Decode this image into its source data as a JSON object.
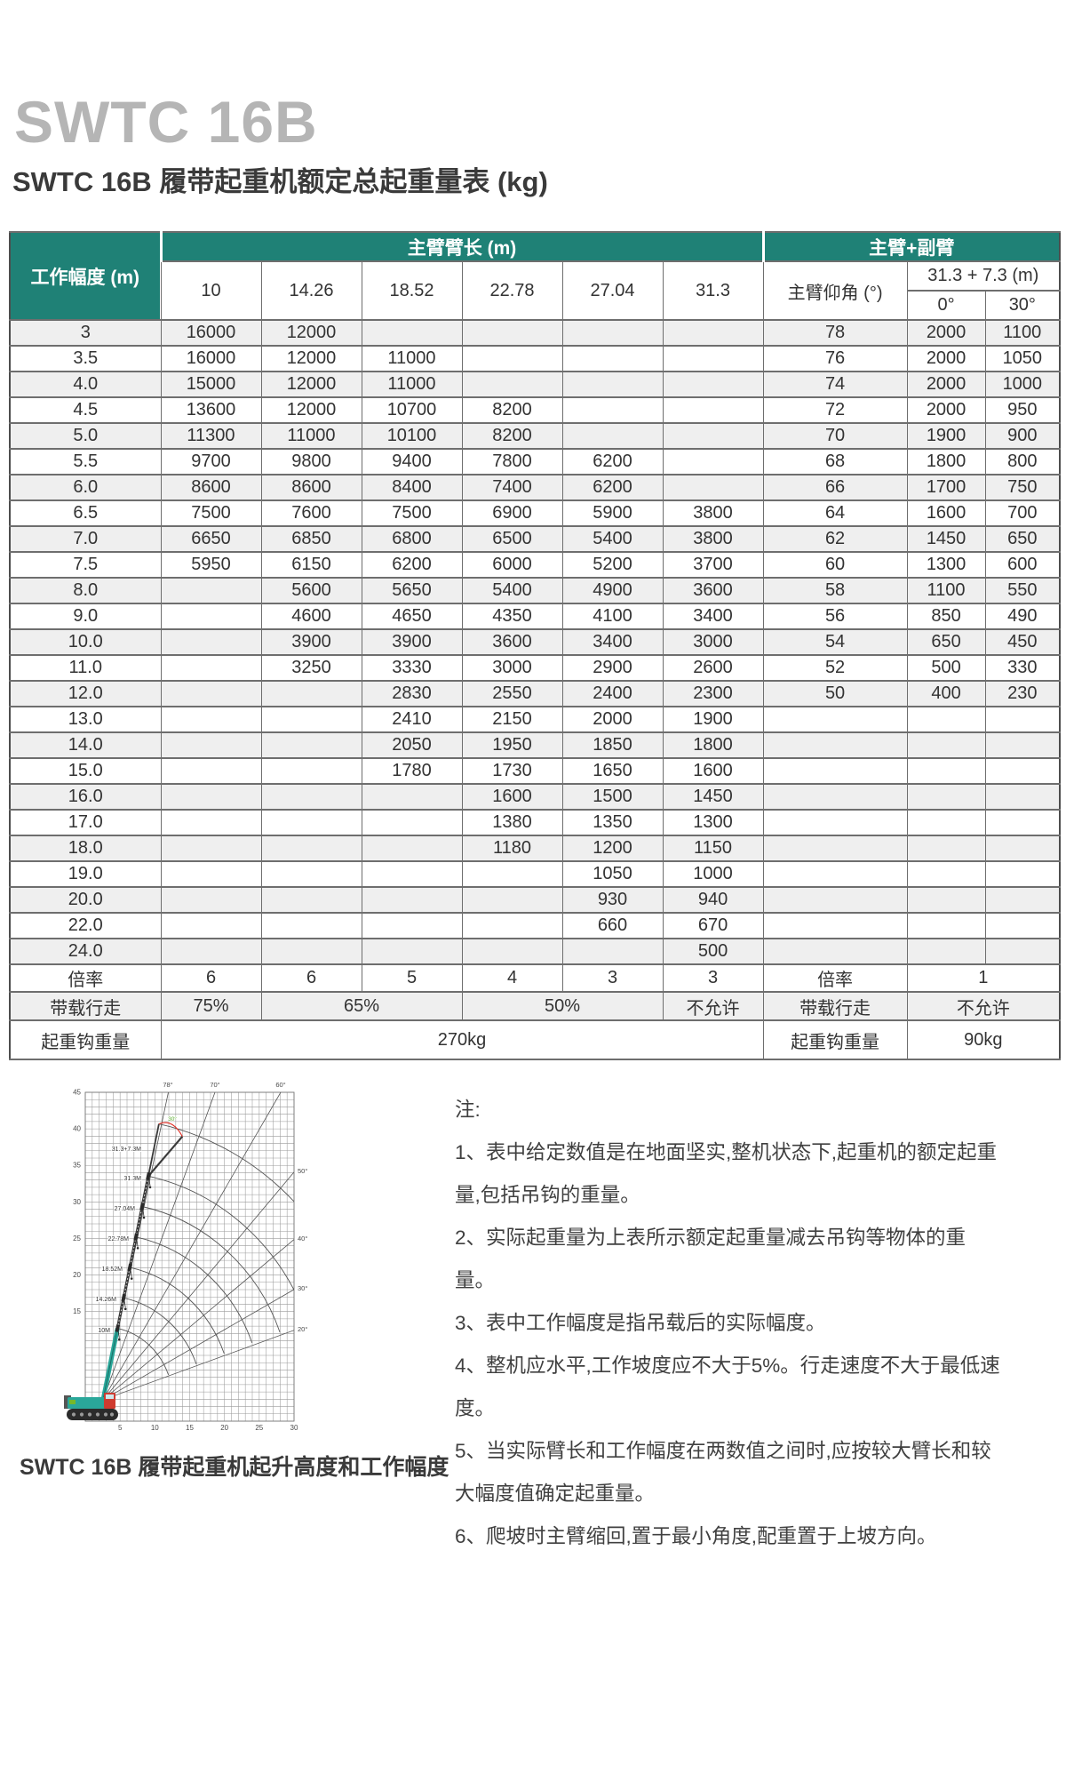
{
  "page": {
    "brand_title": "SWTC 16B",
    "table_title": "SWTC 16B 履带起重机额定总起重量表 (kg)"
  },
  "colors": {
    "header_teal": "#1F8176",
    "row_stripe": "#EFEFEF",
    "crane_teal": "#2AA79A",
    "crane_red": "#CF3B30",
    "crane_green": "#76B82A"
  },
  "table": {
    "corner_header": "工作幅度 (m)",
    "main_boom_header": "主臂臂长 (m)",
    "jib_header": "主臂+副臂",
    "boom_lengths": [
      "10",
      "14.26",
      "18.52",
      "22.78",
      "27.04",
      "31.3"
    ],
    "boom_angle_header": "主臂仰角 (°)",
    "jib_combo_header": "31.3 + 7.3 (m)",
    "jib_offsets": [
      "0°",
      "30°"
    ],
    "rows": [
      {
        "radius": "3",
        "values": [
          "16000",
          "12000",
          "",
          "",
          "",
          ""
        ],
        "angle": "78",
        "jib": [
          "2000",
          "1100"
        ]
      },
      {
        "radius": "3.5",
        "values": [
          "16000",
          "12000",
          "11000",
          "",
          "",
          ""
        ],
        "angle": "76",
        "jib": [
          "2000",
          "1050"
        ]
      },
      {
        "radius": "4.0",
        "values": [
          "15000",
          "12000",
          "11000",
          "",
          "",
          ""
        ],
        "angle": "74",
        "jib": [
          "2000",
          "1000"
        ]
      },
      {
        "radius": "4.5",
        "values": [
          "13600",
          "12000",
          "10700",
          "8200",
          "",
          ""
        ],
        "angle": "72",
        "jib": [
          "2000",
          "950"
        ]
      },
      {
        "radius": "5.0",
        "values": [
          "11300",
          "11000",
          "10100",
          "8200",
          "",
          ""
        ],
        "angle": "70",
        "jib": [
          "1900",
          "900"
        ]
      },
      {
        "radius": "5.5",
        "values": [
          "9700",
          "9800",
          "9400",
          "7800",
          "6200",
          ""
        ],
        "angle": "68",
        "jib": [
          "1800",
          "800"
        ]
      },
      {
        "radius": "6.0",
        "values": [
          "8600",
          "8600",
          "8400",
          "7400",
          "6200",
          ""
        ],
        "angle": "66",
        "jib": [
          "1700",
          "750"
        ]
      },
      {
        "radius": "6.5",
        "values": [
          "7500",
          "7600",
          "7500",
          "6900",
          "5900",
          "3800"
        ],
        "angle": "64",
        "jib": [
          "1600",
          "700"
        ]
      },
      {
        "radius": "7.0",
        "values": [
          "6650",
          "6850",
          "6800",
          "6500",
          "5400",
          "3800"
        ],
        "angle": "62",
        "jib": [
          "1450",
          "650"
        ]
      },
      {
        "radius": "7.5",
        "values": [
          "5950",
          "6150",
          "6200",
          "6000",
          "5200",
          "3700"
        ],
        "angle": "60",
        "jib": [
          "1300",
          "600"
        ]
      },
      {
        "radius": "8.0",
        "values": [
          "",
          "5600",
          "5650",
          "5400",
          "4900",
          "3600"
        ],
        "angle": "58",
        "jib": [
          "1100",
          "550"
        ]
      },
      {
        "radius": "9.0",
        "values": [
          "",
          "4600",
          "4650",
          "4350",
          "4100",
          "3400"
        ],
        "angle": "56",
        "jib": [
          "850",
          "490"
        ]
      },
      {
        "radius": "10.0",
        "values": [
          "",
          "3900",
          "3900",
          "3600",
          "3400",
          "3000"
        ],
        "angle": "54",
        "jib": [
          "650",
          "450"
        ]
      },
      {
        "radius": "11.0",
        "values": [
          "",
          "3250",
          "3330",
          "3000",
          "2900",
          "2600"
        ],
        "angle": "52",
        "jib": [
          "500",
          "330"
        ]
      },
      {
        "radius": "12.0",
        "values": [
          "",
          "",
          "2830",
          "2550",
          "2400",
          "2300"
        ],
        "angle": "50",
        "jib": [
          "400",
          "230"
        ]
      },
      {
        "radius": "13.0",
        "values": [
          "",
          "",
          "2410",
          "2150",
          "2000",
          "1900"
        ],
        "angle": "",
        "jib": [
          "",
          ""
        ]
      },
      {
        "radius": "14.0",
        "values": [
          "",
          "",
          "2050",
          "1950",
          "1850",
          "1800"
        ],
        "angle": "",
        "jib": [
          "",
          ""
        ]
      },
      {
        "radius": "15.0",
        "values": [
          "",
          "",
          "1780",
          "1730",
          "1650",
          "1600"
        ],
        "angle": "",
        "jib": [
          "",
          ""
        ]
      },
      {
        "radius": "16.0",
        "values": [
          "",
          "",
          "",
          "1600",
          "1500",
          "1450"
        ],
        "angle": "",
        "jib": [
          "",
          ""
        ]
      },
      {
        "radius": "17.0",
        "values": [
          "",
          "",
          "",
          "1380",
          "1350",
          "1300"
        ],
        "angle": "",
        "jib": [
          "",
          ""
        ]
      },
      {
        "radius": "18.0",
        "values": [
          "",
          "",
          "",
          "1180",
          "1200",
          "1150"
        ],
        "angle": "",
        "jib": [
          "",
          ""
        ]
      },
      {
        "radius": "19.0",
        "values": [
          "",
          "",
          "",
          "",
          "1050",
          "1000"
        ],
        "angle": "",
        "jib": [
          "",
          ""
        ]
      },
      {
        "radius": "20.0",
        "values": [
          "",
          "",
          "",
          "",
          "930",
          "940"
        ],
        "angle": "",
        "jib": [
          "",
          ""
        ]
      },
      {
        "radius": "22.0",
        "values": [
          "",
          "",
          "",
          "",
          "660",
          "670"
        ],
        "angle": "",
        "jib": [
          "",
          ""
        ]
      },
      {
        "radius": "24.0",
        "values": [
          "",
          "",
          "",
          "",
          "",
          "500"
        ],
        "angle": "",
        "jib": [
          "",
          ""
        ]
      }
    ],
    "footer": {
      "multiplier": {
        "label": "倍率",
        "values": [
          "6",
          "6",
          "5",
          "4",
          "3",
          "3"
        ],
        "jib_label": "倍率",
        "jib_value": "1"
      },
      "travel": {
        "label": "带载行走",
        "col_10": "75%",
        "col_14_18": "65%",
        "col_22_27": "50%",
        "col_31": "不允许",
        "jib_label": "带载行走",
        "jib_value": "不允许"
      },
      "hook": {
        "label": "起重钩重量",
        "value": "270kg",
        "jib_label": "起重钩重量",
        "jib_value": "90kg"
      }
    }
  },
  "diagram": {
    "y_ticks": [
      "45",
      "40",
      "35",
      "30",
      "25",
      "20",
      "15"
    ],
    "x_ticks": [
      "5",
      "10",
      "15",
      "20",
      "25",
      "30"
    ],
    "angle_labels": [
      "78°",
      "70°",
      "60°",
      "50°",
      "40°",
      "30°",
      "20°"
    ],
    "boom_labels": [
      "31.3+7.3M",
      "31.3M",
      "27.04M",
      "22.78M",
      "18.52M",
      "14.26M",
      "10M"
    ],
    "jib_offset_label": "30°",
    "caption": "SWTC 16B 履带起重机起升高度和工作幅度"
  },
  "notes": {
    "title": "注:",
    "items": [
      "1、表中给定数值是在地面坚实,整机状态下,起重机的额定起重量,包括吊钩的重量。",
      "2、实际起重量为上表所示额定起重量减去吊钩等物体的重量。",
      "3、表中工作幅度是指吊载后的实际幅度。",
      "4、整机应水平,工作坡度应不大于5%。行走速度不大于最低速度。",
      "5、当实际臂长和工作幅度在两数值之间时,应按较大臂长和较大幅度值确定起重量。",
      "6、爬坡时主臂缩回,置于最小角度,配重置于上坡方向。"
    ]
  }
}
